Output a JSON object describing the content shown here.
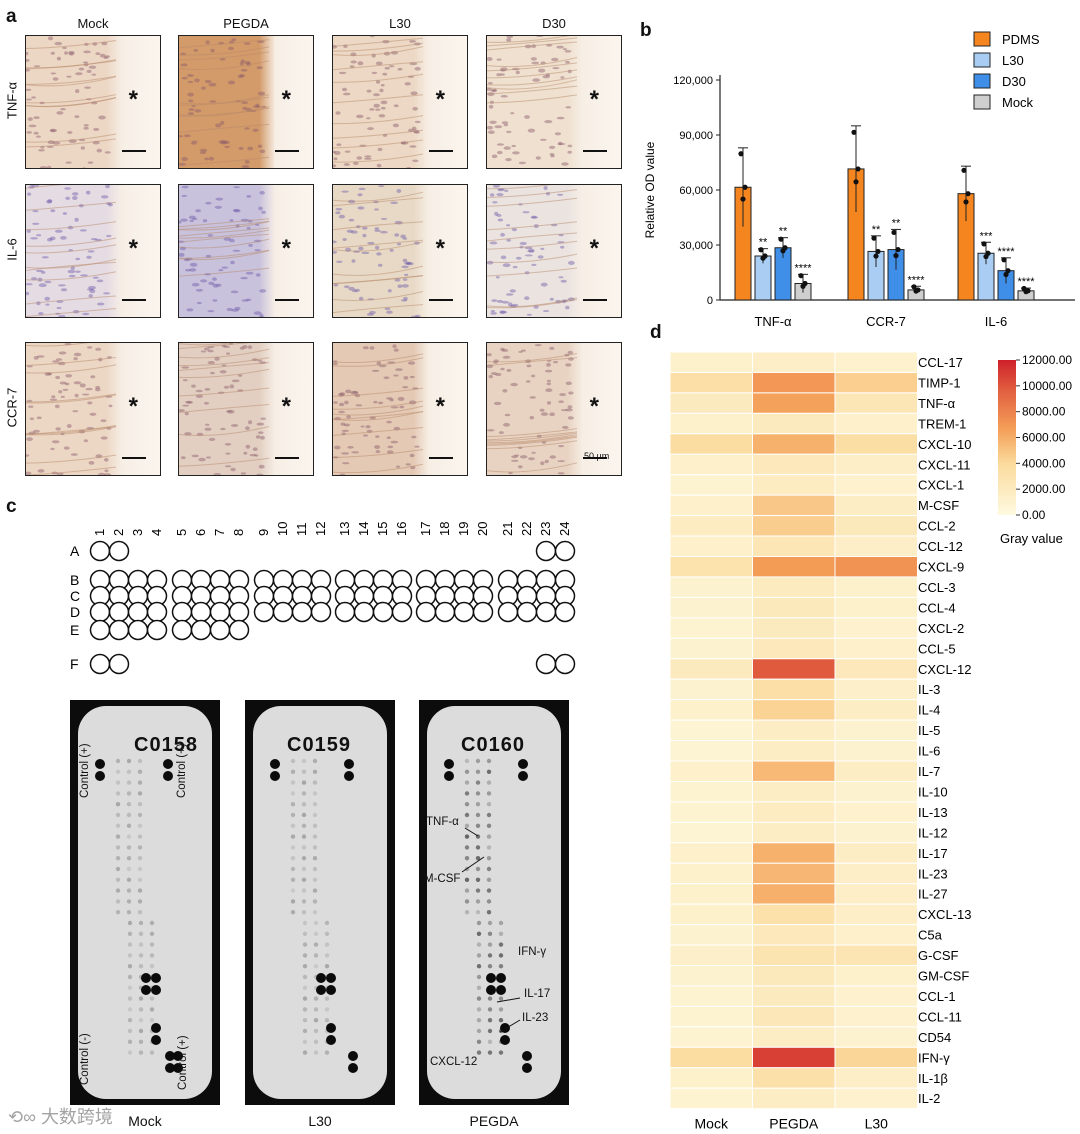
{
  "panels": {
    "a": "a",
    "b": "b",
    "c": "c",
    "d": "d"
  },
  "panel_a": {
    "columns": [
      "Mock",
      "PEGDA",
      "L30",
      "D30"
    ],
    "rows": [
      "TNF-α",
      "IL-6",
      "CCR-7"
    ],
    "asterisk": "*",
    "scale_text": "50 μm"
  },
  "panel_b": {
    "ylabel": "Relative OD value",
    "yticks": [
      "0",
      "30,000",
      "60,000",
      "90,000",
      "120,000"
    ],
    "legend": [
      "PDMS",
      "L30",
      "D30",
      "Mock"
    ],
    "sig_labels": [
      "**",
      "**",
      "****",
      "**",
      "**",
      "****",
      "***",
      "****",
      "****"
    ],
    "colors": {
      "PDMS": "#f5851f",
      "L30": "#a9cdf3",
      "D30": "#3f8fe8",
      "Mock": "#cfcfcf"
    }
  },
  "chart_data": {
    "type": "bar",
    "categories": [
      "TNF-α",
      "CCR-7",
      "IL-6"
    ],
    "ylabel": "Relative OD value",
    "ylim": [
      0,
      120000
    ],
    "series": [
      {
        "name": "PDMS",
        "values": [
          61500,
          71500,
          58000
        ],
        "errors": [
          21500,
          23500,
          15000
        ]
      },
      {
        "name": "L30",
        "values": [
          24000,
          26500,
          25500
        ],
        "errors": [
          4000,
          8500,
          6000
        ]
      },
      {
        "name": "D30",
        "values": [
          28500,
          27500,
          16000
        ],
        "errors": [
          5500,
          11000,
          7000
        ]
      },
      {
        "name": "Mock",
        "values": [
          9000,
          5500,
          5000
        ],
        "errors": [
          5000,
          2000,
          1500
        ]
      }
    ]
  },
  "panel_c": {
    "numbers": [
      "1",
      "2",
      "3",
      "4",
      "5",
      "6",
      "7",
      "8",
      "9",
      "10",
      "11",
      "12",
      "13",
      "14",
      "15",
      "16",
      "17",
      "18",
      "19",
      "20",
      "21",
      "22",
      "23",
      "24"
    ],
    "rows": [
      "A",
      "B",
      "C",
      "D",
      "E",
      "F"
    ],
    "cards": [
      {
        "id": "C0158",
        "caption": "Mock",
        "labels": [
          "Control (+)",
          "Control (+)",
          "Control (-)",
          "Control (+)"
        ]
      },
      {
        "id": "C0159",
        "caption": "L30"
      },
      {
        "id": "C0160",
        "caption": "PEGDA",
        "labels": [
          "TNF-α",
          "M-CSF",
          "IFN-γ",
          "IL-17",
          "IL-23",
          "CXCL-12"
        ]
      }
    ]
  },
  "panel_d": {
    "columns": [
      "Mock",
      "PEGDA",
      "L30"
    ],
    "rows": [
      "CCL-17",
      "TIMP-1",
      "TNF-α",
      "TREM-1",
      "CXCL-10",
      "CXCL-11",
      "CXCL-1",
      "M-CSF",
      "CCL-2",
      "CCL-12",
      "CXCL-9",
      "CCL-3",
      "CCL-4",
      "CXCL-2",
      "CCL-5",
      "CXCL-12",
      "IL-3",
      "IL-4",
      "IL-5",
      "IL-6",
      "IL-7",
      "IL-10",
      "IL-13",
      "IL-12",
      "IL-17",
      "IL-23",
      "IL-27",
      "CXCL-13",
      "C5a",
      "G-CSF",
      "GM-CSF",
      "CCL-1",
      "CCL-11",
      "CD54",
      "IFN-γ",
      "IL-1β",
      "IL-2"
    ],
    "values": [
      [
        1200,
        1500,
        1100
      ],
      [
        3500,
        7000,
        4500
      ],
      [
        2000,
        6500,
        2500
      ],
      [
        1200,
        2000,
        1300
      ],
      [
        3800,
        5800,
        3600
      ],
      [
        1300,
        2300,
        1500
      ],
      [
        900,
        1800,
        1100
      ],
      [
        1300,
        4800,
        1600
      ],
      [
        1800,
        4600,
        2200
      ],
      [
        1300,
        2500,
        1500
      ],
      [
        3000,
        6800,
        7200
      ],
      [
        1000,
        1900,
        1200
      ],
      [
        1000,
        2200,
        1200
      ],
      [
        900,
        2000,
        1100
      ],
      [
        1000,
        2300,
        1300
      ],
      [
        2000,
        9800,
        2300
      ],
      [
        1000,
        3500,
        1400
      ],
      [
        1200,
        4300,
        1700
      ],
      [
        800,
        1600,
        1000
      ],
      [
        800,
        1600,
        1000
      ],
      [
        1300,
        5500,
        1700
      ],
      [
        900,
        1700,
        1000
      ],
      [
        900,
        1800,
        1100
      ],
      [
        800,
        1600,
        1000
      ],
      [
        1300,
        5800,
        1600
      ],
      [
        1200,
        5600,
        1500
      ],
      [
        1200,
        5900,
        1500
      ],
      [
        1200,
        3200,
        1500
      ],
      [
        1000,
        2300,
        1300
      ],
      [
        1400,
        2800,
        2700
      ],
      [
        1000,
        2200,
        1200
      ],
      [
        900,
        2000,
        1100
      ],
      [
        900,
        2400,
        1100
      ],
      [
        900,
        1600,
        1000
      ],
      [
        3800,
        10800,
        4200
      ],
      [
        1200,
        3300,
        1500
      ],
      [
        900,
        1700,
        1100
      ]
    ],
    "colorbar_ticks": [
      "12000.00",
      "10000.00",
      "8000.00",
      "6000.00",
      "4000.00",
      "2000.00",
      "0.00"
    ],
    "colorbar_label": "Gray value",
    "range": [
      0,
      12000
    ]
  },
  "watermark": "大数跨境"
}
